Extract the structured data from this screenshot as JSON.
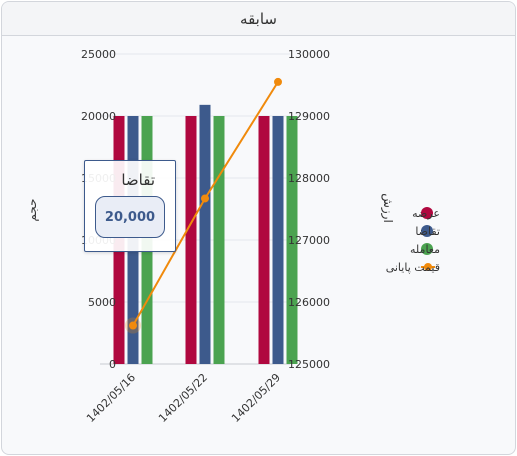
{
  "panel": {
    "title": "سابقه"
  },
  "chart_data": {
    "type": "bar",
    "categories": [
      "1402/05/16",
      "1402/05/22",
      "1402/05/29"
    ],
    "series": [
      {
        "name": "عرضه",
        "type": "bar",
        "axis": "left",
        "color": "#b0083f",
        "values": [
          20000,
          20000,
          20000
        ]
      },
      {
        "name": "تقاضا",
        "type": "bar",
        "axis": "left",
        "color": "#3d5a8c",
        "values": [
          20000,
          20900,
          20000
        ]
      },
      {
        "name": "معامله",
        "type": "bar",
        "axis": "left",
        "color": "#4ba350",
        "values": [
          20000,
          20000,
          20000
        ]
      },
      {
        "name": "قیمت پایانی",
        "type": "line",
        "axis": "right",
        "color": "#f08a0c",
        "values": [
          125620,
          127670,
          129550
        ]
      }
    ],
    "y_left": {
      "label": "حجم",
      "ylim": [
        0,
        25000
      ],
      "ticks": [
        "0",
        "5000",
        "10000",
        "15000",
        "20000",
        "25000"
      ]
    },
    "y_right": {
      "label": "ارزش",
      "ylim": [
        125000,
        130000
      ],
      "ticks": [
        "125000",
        "126000",
        "127000",
        "128000",
        "129000",
        "130000"
      ]
    },
    "grid": true,
    "legend": "right",
    "tooltip": {
      "title": "تقاضا",
      "value": "20,000"
    }
  }
}
